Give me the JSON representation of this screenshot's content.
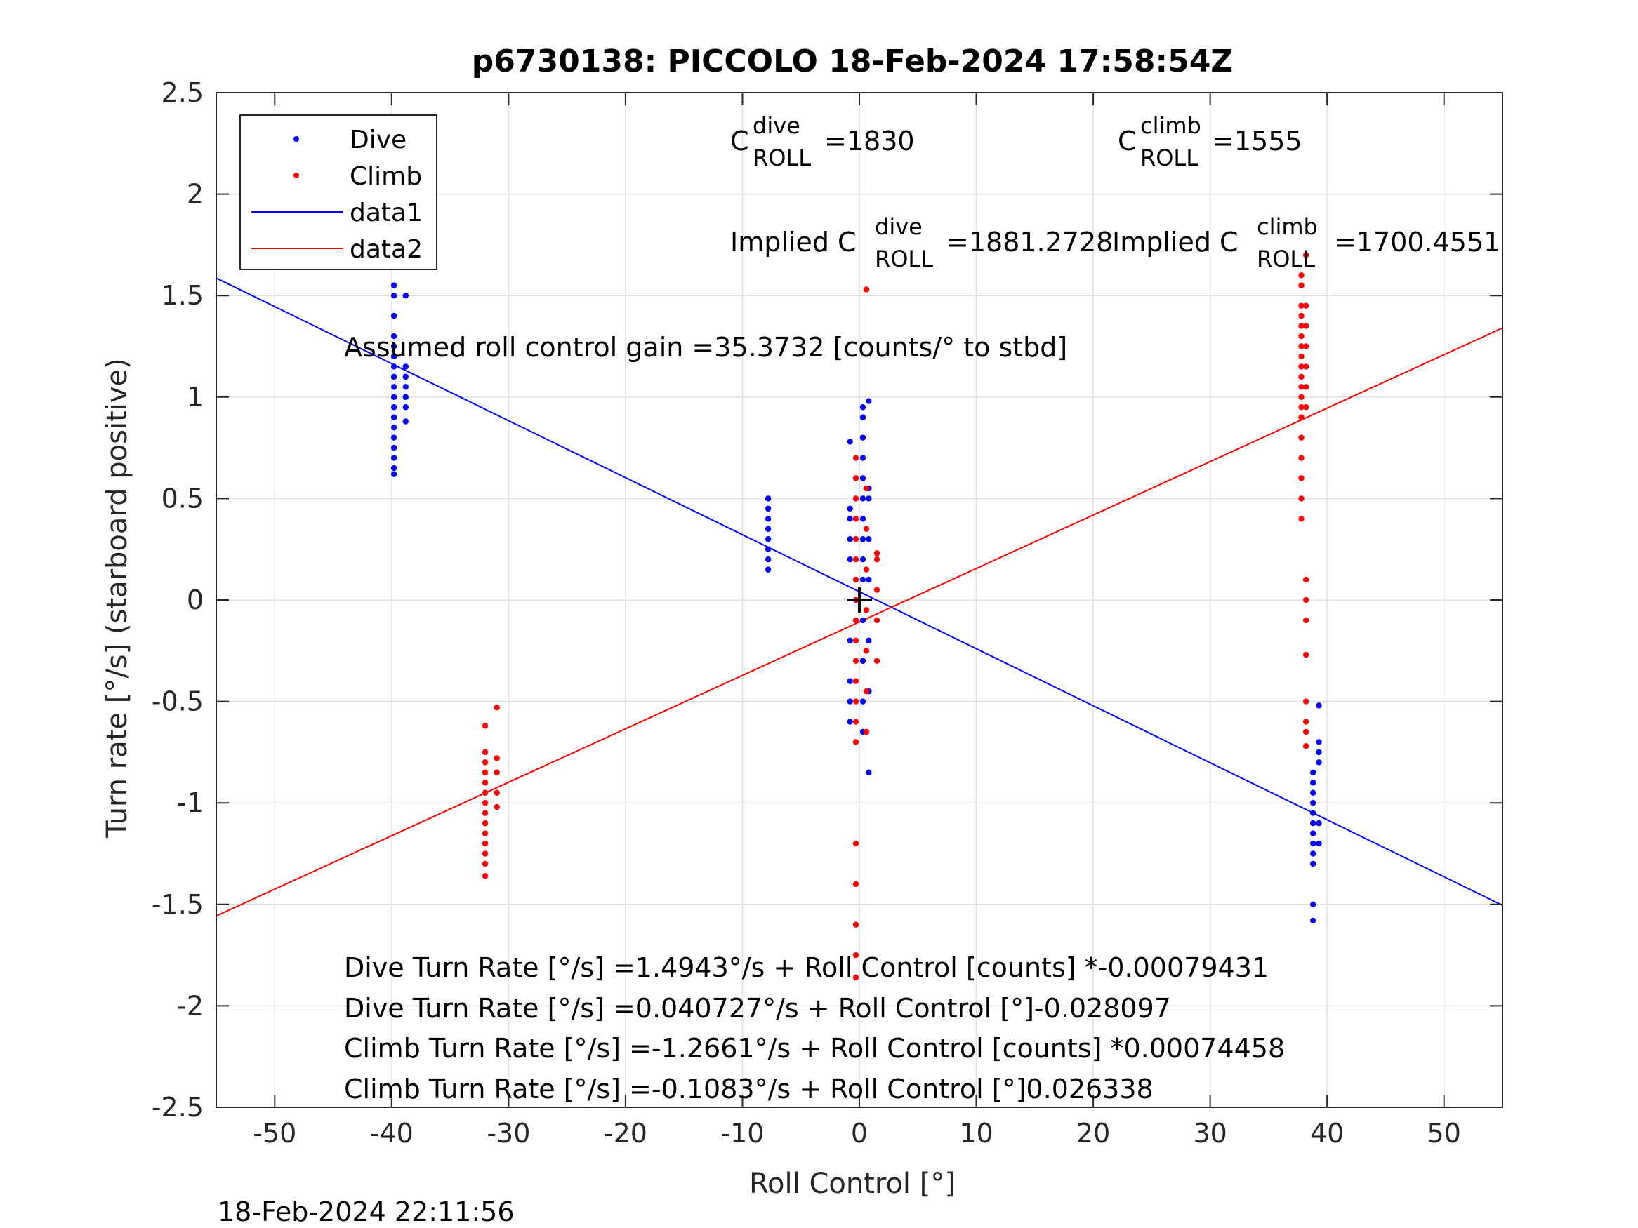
{
  "chart_data": {
    "type": "scatter",
    "title": "p6730138: PICCOLO 18-Feb-2024 17:58:54Z",
    "xlabel": "Roll Control [°]",
    "ylabel": "Turn rate [°/s] (starboard positive)",
    "xlim": [
      -55,
      55
    ],
    "ylim": [
      -2.5,
      2.5
    ],
    "xticks": [
      "-50",
      "-40",
      "-30",
      "-20",
      "-10",
      "0",
      "10",
      "20",
      "30",
      "40",
      "50"
    ],
    "yticks": [
      "-2.5",
      "-2",
      "-1.5",
      "-1",
      "-0.5",
      "0",
      "0.5",
      "1",
      "1.5",
      "2",
      "2.5"
    ],
    "grid": true,
    "legend_position": "top-left",
    "timestamp": "18-Feb-2024 22:11:56",
    "legend": [
      "Dive",
      "Climb",
      "data1",
      "data2"
    ],
    "colors": {
      "dive": "#0000ff",
      "climb": "#ff0000",
      "axis": "#262626",
      "grid": "#dfdfdf"
    },
    "series": [
      {
        "name": "Dive",
        "color": "#0000ff",
        "clusters": [
          {
            "x": -39.8,
            "y": [
              0.62,
              0.65,
              0.7,
              0.75,
              0.8,
              0.85,
              0.9,
              0.95,
              1.0,
              1.05,
              1.1,
              1.15,
              1.2,
              1.25,
              1.3,
              1.4,
              1.5,
              1.55,
              1.85,
              1.9,
              1.95,
              2.1
            ]
          },
          {
            "x": -38.8,
            "y": [
              0.88,
              0.95,
              1.0,
              1.05,
              1.1,
              1.15,
              1.5
            ]
          },
          {
            "x": -7.8,
            "y": [
              0.15,
              0.2,
              0.25,
              0.3,
              0.35,
              0.4,
              0.45,
              0.5
            ]
          },
          {
            "x": 0.3,
            "y": [
              -0.65,
              -0.5,
              -0.3,
              -0.1,
              0.1,
              0.2,
              0.3,
              0.4,
              0.5,
              0.6,
              0.7,
              0.8,
              0.9,
              0.95
            ]
          },
          {
            "x": -0.8,
            "y": [
              -0.6,
              -0.5,
              -0.4,
              -0.2,
              0.2,
              0.3,
              0.4,
              0.45,
              0.78
            ]
          },
          {
            "x": 0.8,
            "y": [
              -0.85,
              -0.45,
              -0.2,
              0.1,
              0.3,
              0.5,
              0.55,
              0.98
            ]
          },
          {
            "x": 38.8,
            "y": [
              -0.85,
              -0.9,
              -0.95,
              -1.0,
              -1.05,
              -1.1,
              -1.15,
              -1.2,
              -1.25,
              -1.3,
              -1.5,
              -1.58
            ]
          },
          {
            "x": 39.3,
            "y": [
              -0.52,
              -0.7,
              -0.75,
              -0.8,
              -1.1,
              -1.2
            ]
          }
        ]
      },
      {
        "name": "Climb",
        "color": "#ff0000",
        "clusters": [
          {
            "x": -32.0,
            "y": [
              -0.62,
              -0.75,
              -0.8,
              -0.85,
              -0.9,
              -0.95,
              -1.0,
              -1.05,
              -1.1,
              -1.15,
              -1.2,
              -1.25,
              -1.3,
              -1.36
            ]
          },
          {
            "x": -31.0,
            "y": [
              -0.53,
              -0.78,
              -0.85,
              -0.95,
              -1.02
            ]
          },
          {
            "x": -0.3,
            "y": [
              -1.86,
              -1.75,
              -1.6,
              -1.4,
              -1.2,
              -0.7,
              -0.6,
              -0.5,
              -0.4,
              -0.3,
              -0.2,
              -0.1,
              0.0,
              0.1,
              0.2,
              0.3,
              0.4,
              0.5,
              0.6,
              0.7
            ]
          },
          {
            "x": 0.6,
            "y": [
              -0.65,
              -0.45,
              -0.25,
              -0.05,
              0.15,
              0.35,
              0.55,
              1.53
            ]
          },
          {
            "x": 1.5,
            "y": [
              -0.3,
              -0.1,
              0.05,
              0.2,
              0.23
            ]
          },
          {
            "x": 37.8,
            "y": [
              0.9,
              0.95,
              1.0,
              1.05,
              1.1,
              1.15,
              1.2,
              1.25,
              1.3,
              1.35,
              1.4,
              1.45,
              1.55,
              1.6,
              0.8,
              0.7,
              0.6,
              0.5,
              0.4
            ]
          },
          {
            "x": 38.2,
            "y": [
              0.95,
              1.05,
              1.15,
              1.25,
              1.35,
              1.45,
              1.7,
              0.1,
              0.0,
              -0.1,
              -0.27,
              -0.5,
              -0.6,
              -0.65,
              -0.72
            ]
          }
        ]
      }
    ],
    "fits": [
      {
        "name": "data1",
        "color": "#0000ff",
        "intercept": 0.040727,
        "slope": -0.028097
      },
      {
        "name": "data2",
        "color": "#ff0000",
        "intercept": -0.1083,
        "slope": 0.026338
      }
    ],
    "marker": {
      "x": 0,
      "y": 0,
      "symbol": "+"
    },
    "annotations": {
      "c_dive": {
        "base": "C",
        "sup": "dive",
        "sub": "ROLL",
        "value": "=1830"
      },
      "c_climb": {
        "base": "C",
        "sup": "climb",
        "sub": "ROLL",
        "value": "=1555"
      },
      "implied_dive": {
        "prefix": "Implied C",
        "sup": "dive",
        "sub": "ROLL",
        "value": "=1881.2728"
      },
      "implied_climb": {
        "prefix": "Implied C",
        "sup": "climb",
        "sub": "ROLL",
        "value": "=1700.4551"
      },
      "gain": "Assumed roll control gain =35.3732 [counts/° to stbd]",
      "equations": [
        "Dive Turn Rate [°/s] =1.4943°/s + Roll Control [counts] *-0.00079431",
        "Dive Turn Rate [°/s] =0.040727°/s + Roll Control [°]-0.028097",
        "Climb Turn Rate [°/s] =-1.2661°/s + Roll Control [counts] *0.00074458",
        "Climb Turn Rate [°/s] =-0.1083°/s + Roll Control [°]0.026338"
      ]
    }
  }
}
